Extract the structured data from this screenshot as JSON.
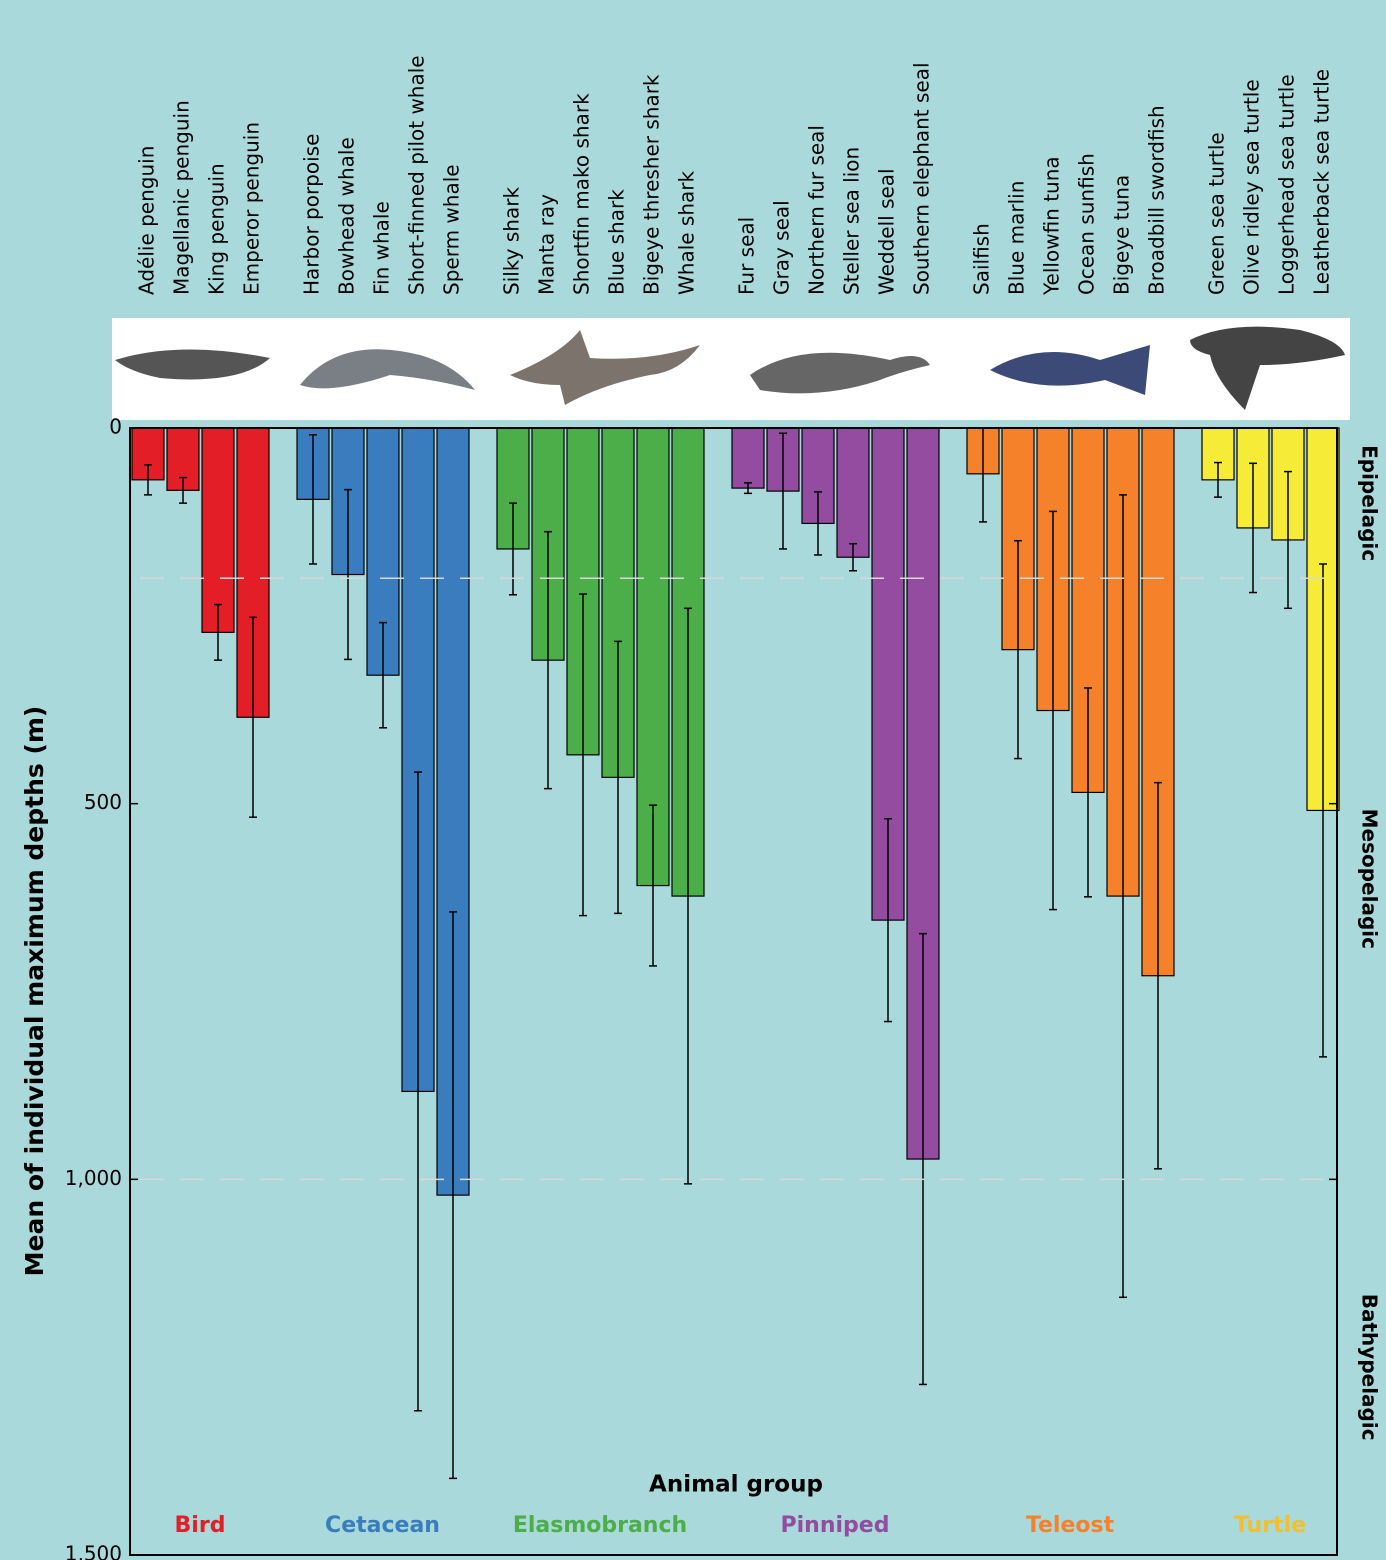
{
  "chart_data": {
    "type": "bar",
    "orientation": "down",
    "x_label": "Animal group",
    "y_label": "Mean of individual maximum depths (m)",
    "ylim": [
      0,
      1500
    ],
    "yticks": [
      0,
      500,
      {
        "value": 1000,
        "label": "1,000"
      },
      {
        "value": 1500,
        "label": "1,500"
      }
    ],
    "zones": [
      {
        "label": "Epipelagic",
        "range": [
          0,
          200
        ]
      },
      {
        "label": "Mesopelagic",
        "range": [
          200,
          1000
        ]
      },
      {
        "label": "Bathypelagic",
        "range": [
          1000,
          1500
        ]
      }
    ],
    "series": [
      {
        "name": "Bird",
        "color": "#e31e26",
        "categories": [
          "Adélie penguin",
          "Magellanic penguin",
          "King penguin",
          "Emperor penguin"
        ],
        "values": [
          69,
          83,
          272,
          385
        ],
        "errors": [
          20,
          17,
          37,
          133
        ]
      },
      {
        "name": "Cetacean",
        "color": "#3a7dbf",
        "categories": [
          "Harbor porpoise",
          "Bowhead whale",
          "Fin whale",
          "Short-finned pilot whale",
          "Sperm whale"
        ],
        "values": [
          95,
          195,
          329,
          883,
          1021
        ],
        "errors": [
          86,
          113,
          70,
          425,
          377
        ]
      },
      {
        "name": "Elasmobranch",
        "color": "#4cae48",
        "categories": [
          "Silky shark",
          "Manta ray",
          "Shortfin mako shark",
          "Blue shark",
          "Bigeye thresher shark",
          "Whale shark"
        ],
        "values": [
          161,
          309,
          435,
          465,
          609,
          623
        ],
        "errors": [
          61,
          171,
          214,
          181,
          107,
          383
        ]
      },
      {
        "name": "Pinniped",
        "color": "#934c9f",
        "categories": [
          "Fur seal",
          "Gray seal",
          "Northern fur seal",
          "Steller sea lion",
          "Weddell seal",
          "Southern elephant seal"
        ],
        "values": [
          80,
          84,
          127,
          172,
          655,
          973
        ],
        "errors": [
          7,
          77,
          42,
          18,
          135,
          300
        ]
      },
      {
        "name": "Teleost",
        "color": "#f5822a",
        "categories": [
          "Sailfish",
          "Blue marlin",
          "Yellowfin tuna",
          "Ocean sunfish",
          "Bigeye tuna",
          "Broadbill swordfish"
        ],
        "values": [
          61,
          295,
          376,
          485,
          623,
          729
        ],
        "errors": [
          64,
          145,
          265,
          139,
          534,
          257
        ]
      },
      {
        "name": "Turtle",
        "color": "#f6ec38",
        "legend_color": "#f0c030",
        "categories": [
          "Green sea turtle",
          "Olive ridley sea turtle",
          "Loggerhead sea turtle",
          "Leatherback sea turtle"
        ],
        "values": [
          69,
          133,
          149,
          509
        ],
        "errors": [
          23,
          86,
          91,
          328
        ]
      }
    ]
  }
}
